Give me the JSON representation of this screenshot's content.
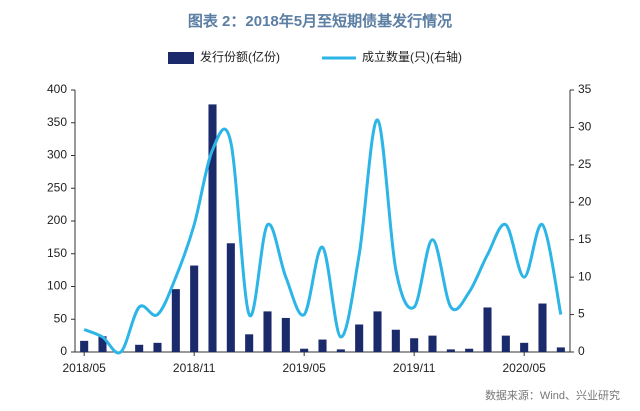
{
  "chart_data": {
    "type": "bar_line",
    "title": "图表 2：2018年5月至短期债基发行情况",
    "source": "数据来源：Wind、兴业研究",
    "categories": [
      "2018/05",
      null,
      null,
      null,
      null,
      null,
      "2018/11",
      null,
      null,
      null,
      null,
      null,
      "2019/05",
      null,
      null,
      null,
      null,
      null,
      "2019/11",
      null,
      null,
      null,
      null,
      null,
      "2020/05",
      null,
      null
    ],
    "series": [
      {
        "name": "发行份额(亿份)",
        "type": "bar",
        "color": "#1b2a6b",
        "values": [
          17,
          24,
          0,
          11,
          14,
          96,
          132,
          378,
          166,
          27,
          62,
          52,
          5,
          19,
          4,
          42,
          62,
          34,
          21,
          25,
          4,
          5,
          68,
          25,
          14,
          74,
          7
        ]
      },
      {
        "name": "成立数量(只)(右轴)",
        "type": "line",
        "axis": "y2",
        "color": "#2cb5e6",
        "values": [
          3,
          2,
          0,
          6,
          5,
          10,
          17,
          27,
          28,
          5,
          17,
          10,
          5,
          14,
          2,
          13,
          31,
          11,
          6,
          15,
          6,
          8,
          13,
          17,
          10,
          17,
          5
        ]
      }
    ],
    "ylim": [
      0,
      400
    ],
    "yticks": [
      0,
      50,
      100,
      150,
      200,
      250,
      300,
      350,
      400
    ],
    "y2lim": [
      0,
      35
    ],
    "y2ticks": [
      0,
      5,
      10,
      15,
      20,
      25,
      30,
      35
    ],
    "legend": "top"
  }
}
